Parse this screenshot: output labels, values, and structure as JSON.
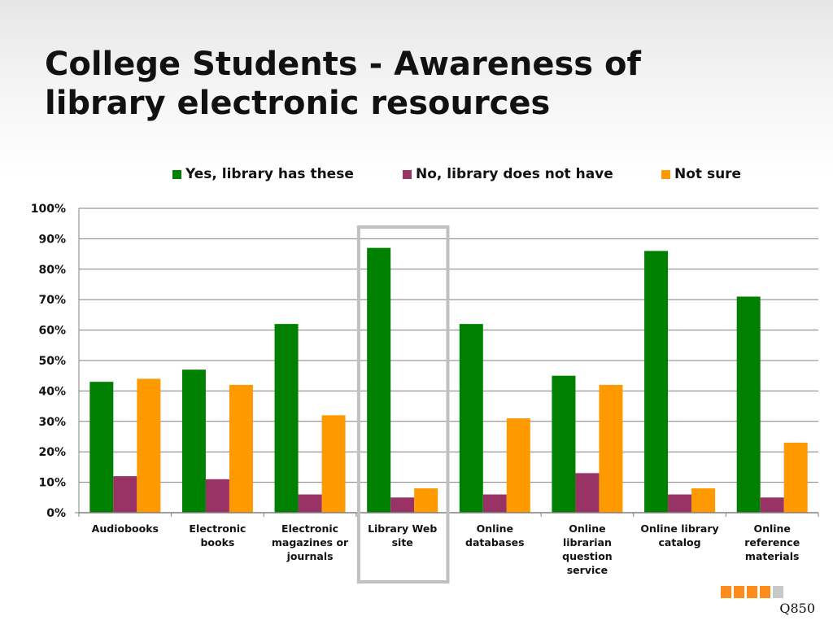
{
  "slide": {
    "title_line1": "College Students - Awareness of",
    "title_line2": "library electronic resources",
    "question_code": "Q850"
  },
  "colors": {
    "yes": "#008000",
    "no": "#993366",
    "not_sure": "#ff9900",
    "highlight_box": "#c0c0c0",
    "progress_on": "#ff8c1a",
    "progress_off": "#c8c8c8"
  },
  "progress": {
    "filled": 4,
    "total": 5
  },
  "chart_data": {
    "type": "bar",
    "categories": [
      [
        "Audiobooks"
      ],
      [
        "Electronic",
        "books"
      ],
      [
        "Electronic",
        "magazines or",
        "journals"
      ],
      [
        "Library Web",
        "site"
      ],
      [
        "Online",
        "databases"
      ],
      [
        "Online",
        "librarian",
        "question",
        "service"
      ],
      [
        "Online library",
        "catalog"
      ],
      [
        "Online",
        "reference",
        "materials"
      ]
    ],
    "series": [
      {
        "name": "Yes, library has these",
        "color": "#008000",
        "values": [
          43,
          47,
          62,
          87,
          62,
          45,
          86,
          71
        ]
      },
      {
        "name": "No, library does not have",
        "color": "#993366",
        "values": [
          12,
          11,
          6,
          5,
          6,
          13,
          6,
          5
        ]
      },
      {
        "name": "Not sure",
        "color": "#ff9900",
        "values": [
          44,
          42,
          32,
          8,
          31,
          42,
          8,
          23
        ]
      }
    ],
    "yticks": [
      "0%",
      "10%",
      "20%",
      "30%",
      "40%",
      "50%",
      "60%",
      "70%",
      "80%",
      "90%",
      "100%"
    ],
    "ylim": [
      0,
      100
    ],
    "unit": "%",
    "grid": true,
    "legend_position": "top",
    "highlighted_category": "Library Web site"
  }
}
